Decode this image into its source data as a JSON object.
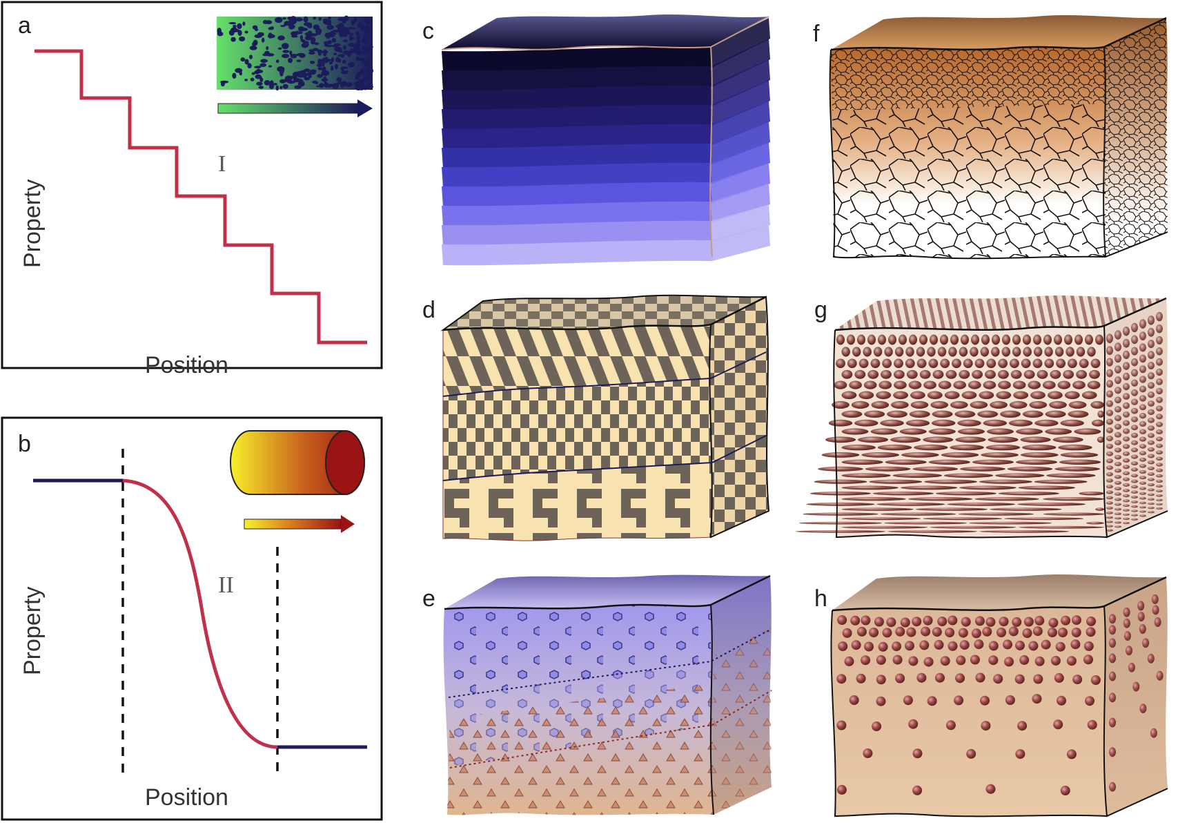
{
  "panels": {
    "a": {
      "label": "a",
      "xlabel": "Position",
      "ylabel": "Property",
      "region": "I"
    },
    "b": {
      "label": "b",
      "xlabel": "Position",
      "ylabel": "Property",
      "region": "II"
    },
    "c": {
      "label": "c"
    },
    "d": {
      "label": "d"
    },
    "e": {
      "label": "e"
    },
    "f": {
      "label": "f"
    },
    "g": {
      "label": "g"
    },
    "h": {
      "label": "h"
    }
  },
  "colors": {
    "step_line": "#c0304a",
    "flat_line": "#1f1a5a",
    "grad_a_start": "#66e06a",
    "grad_a_end": "#1c1b5c",
    "grad_b_start": "#f8f02a",
    "grad_b_end": "#9a1414",
    "cube_c_top": "#0c0a2a",
    "cube_c_bottom": "#b9b2f6",
    "cube_d_light": "#f8e2b0",
    "cube_d_dark": "#6c6458",
    "cube_e_top": "#9d94ec",
    "cube_e_bottom": "#e0b690",
    "cube_f_top": "#c07a3a",
    "cube_g_particle": "#7a3c34",
    "cube_h_base": "#e3c09e"
  },
  "icons": {
    "a_inset": "porous-gradient-block",
    "a_arrow": "gradient-arrow",
    "b_inset": "graded-cylinder",
    "b_arrow": "gradient-arrow"
  }
}
